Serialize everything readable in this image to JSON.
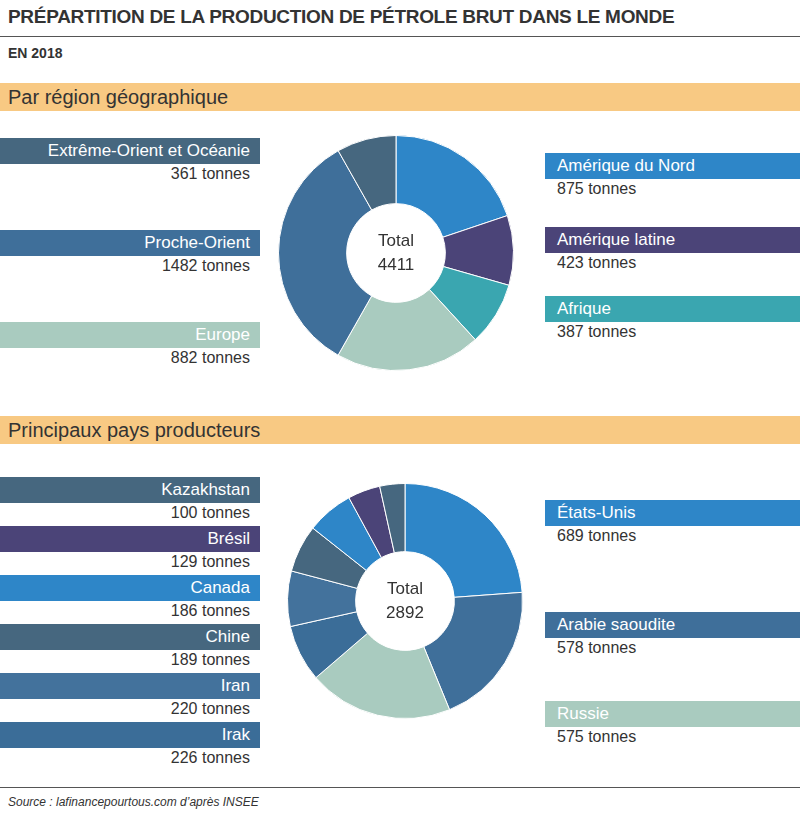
{
  "title": "PRÉPARTITION DE LA PRODUCTION DE PÉTROLE BRUT DANS LE MONDE",
  "subtitle": "EN 2018",
  "source": "Source : lafinancepourtous.com d’après INSEE",
  "chart_data": [
    {
      "type": "doughnut",
      "title": "Par région géographique",
      "center_label": "Total",
      "total": 4411,
      "categories": [
        "Amérique du Nord",
        "Amérique latine",
        "Afrique",
        "Europe",
        "Proche-Orient",
        "Extrême-Orient et Océanie"
      ],
      "values": [
        875,
        423,
        387,
        882,
        1482,
        361
      ],
      "value_labels": [
        "875 tonnes",
        "423 tonnes",
        "387 tonnes",
        "882 tonnes",
        "1482 tonnes",
        "361 tonnes"
      ],
      "colors": [
        "#2e86c8",
        "#4b4478",
        "#3aa6b0",
        "#a9cbbf",
        "#3f6f9a",
        "#46677f"
      ]
    },
    {
      "type": "doughnut",
      "title": "Principaux pays producteurs",
      "center_label": "Total",
      "total": 2892,
      "categories": [
        "États-Unis",
        "Arabie saoudite",
        "Russie",
        "Irak",
        "Iran",
        "Chine",
        "Canada",
        "Brésil",
        "Kazakhstan"
      ],
      "values": [
        689,
        578,
        575,
        226,
        220,
        189,
        186,
        129,
        100
      ],
      "value_labels": [
        "689 tonnes",
        "578 tonnes",
        "575 tonnes",
        "226 tonnes",
        "220 tonnes",
        "189 tonnes",
        "186 tonnes",
        "129 tonnes",
        "100 tonnes"
      ],
      "colors": [
        "#2e86c8",
        "#3f6f9a",
        "#a9cbbf",
        "#3b6d98",
        "#43729c",
        "#46677f",
        "#2e86c8",
        "#4b4478",
        "#46677f"
      ]
    }
  ]
}
